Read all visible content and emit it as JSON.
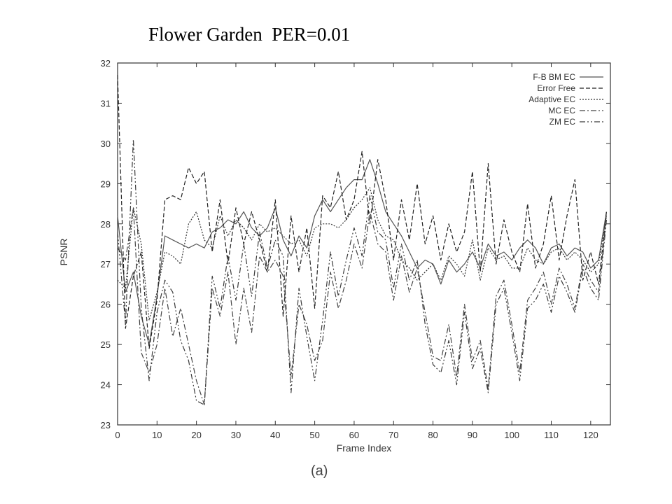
{
  "slide": {
    "title": "Flower Garden  PER=0.01",
    "caption": "(a)"
  },
  "chart_data": {
    "type": "line",
    "xlabel": "Frame Index",
    "ylabel": "PSNR",
    "xlim": [
      0,
      125
    ],
    "ylim": [
      23,
      32
    ],
    "xticks": [
      0,
      10,
      20,
      30,
      40,
      50,
      60,
      70,
      80,
      90,
      100,
      110,
      120
    ],
    "yticks": [
      23,
      24,
      25,
      26,
      27,
      28,
      29,
      30,
      31,
      32
    ],
    "grid": false,
    "legend_position": "top-right",
    "series": [
      {
        "name": "F-B BM EC",
        "dash": "solid",
        "color": "#555555",
        "x": [
          0,
          2,
          4,
          6,
          8,
          10,
          12,
          14,
          16,
          18,
          20,
          22,
          24,
          26,
          28,
          30,
          32,
          34,
          36,
          38,
          40,
          42,
          44,
          46,
          48,
          50,
          52,
          54,
          56,
          58,
          60,
          62,
          64,
          66,
          68,
          70,
          72,
          74,
          76,
          78,
          80,
          82,
          84,
          86,
          88,
          90,
          92,
          94,
          96,
          98,
          100,
          102,
          104,
          106,
          108,
          110,
          112,
          114,
          116,
          118,
          120,
          122,
          124
        ],
        "values": [
          28.2,
          26.3,
          26.8,
          25.7,
          25.0,
          26.2,
          27.7,
          27.6,
          27.5,
          27.4,
          27.5,
          27.4,
          27.8,
          27.9,
          28.1,
          28.0,
          28.3,
          27.9,
          27.7,
          27.9,
          28.4,
          27.6,
          27.2,
          27.7,
          27.4,
          28.2,
          28.6,
          28.3,
          28.6,
          28.9,
          29.1,
          29.1,
          29.6,
          29.0,
          28.3,
          28.0,
          27.7,
          27.3,
          26.9,
          27.1,
          27.0,
          26.5,
          27.1,
          26.8,
          27.0,
          27.3,
          26.9,
          27.5,
          27.2,
          27.3,
          27.1,
          27.4,
          27.6,
          27.4,
          27.0,
          27.4,
          27.5,
          27.2,
          27.4,
          27.3,
          26.9,
          27.1,
          28.3
        ]
      },
      {
        "name": "Error Free",
        "dash": "6,3",
        "color": "#222222",
        "x": [
          0,
          2,
          4,
          6,
          8,
          10,
          12,
          14,
          16,
          18,
          20,
          22,
          24,
          26,
          28,
          30,
          32,
          34,
          36,
          38,
          40,
          42,
          44,
          46,
          48,
          50,
          52,
          54,
          56,
          58,
          60,
          62,
          64,
          66,
          68,
          70,
          72,
          74,
          76,
          78,
          80,
          82,
          84,
          86,
          88,
          90,
          92,
          94,
          96,
          98,
          100,
          102,
          104,
          106,
          108,
          110,
          112,
          114,
          116,
          118,
          120,
          122,
          124
        ],
        "values": [
          31.7,
          25.4,
          26.7,
          27.3,
          24.9,
          26.1,
          28.6,
          28.7,
          28.6,
          29.4,
          29.0,
          29.3,
          27.3,
          28.6,
          27.0,
          28.4,
          27.5,
          28.3,
          27.6,
          26.8,
          28.6,
          25.7,
          28.2,
          26.8,
          27.9,
          25.9,
          28.7,
          28.4,
          29.3,
          28.1,
          28.6,
          29.8,
          28.0,
          29.6,
          28.6,
          27.1,
          28.6,
          27.6,
          29.0,
          27.5,
          28.2,
          27.1,
          28.0,
          27.3,
          27.8,
          29.3,
          26.8,
          29.5,
          27.0,
          28.1,
          27.3,
          26.8,
          28.5,
          26.9,
          27.5,
          28.7,
          27.1,
          28.2,
          29.1,
          26.6,
          27.3,
          26.5,
          28.3
        ]
      },
      {
        "name": "Adaptive EC",
        "dash": "2,2",
        "color": "#333333",
        "x": [
          0,
          2,
          4,
          6,
          8,
          10,
          12,
          14,
          16,
          18,
          20,
          22,
          24,
          26,
          28,
          30,
          32,
          34,
          36,
          38,
          40,
          42,
          44,
          46,
          48,
          50,
          52,
          54,
          56,
          58,
          60,
          62,
          64,
          66,
          68,
          70,
          72,
          74,
          76,
          78,
          80,
          82,
          84,
          86,
          88,
          90,
          92,
          94,
          96,
          98,
          100,
          102,
          104,
          106,
          108,
          110,
          112,
          114,
          116,
          118,
          120,
          122,
          124
        ],
        "values": [
          26.6,
          26.4,
          28.4,
          27.5,
          25.6,
          26.3,
          27.3,
          27.2,
          27.0,
          28.0,
          28.3,
          27.6,
          27.4,
          28.2,
          27.7,
          28.1,
          27.9,
          27.6,
          28.0,
          27.8,
          27.9,
          27.7,
          27.5,
          27.6,
          27.2,
          27.9,
          28.0,
          28.0,
          27.9,
          28.1,
          28.4,
          28.6,
          28.9,
          28.1,
          27.7,
          27.6,
          27.1,
          26.9,
          26.6,
          26.8,
          27.0,
          26.6,
          27.2,
          27.0,
          26.7,
          27.6,
          26.6,
          27.4,
          27.1,
          27.2,
          26.9,
          26.9,
          27.4,
          27.1,
          27.0,
          27.3,
          27.4,
          27.1,
          27.3,
          27.1,
          26.8,
          27.0,
          28.2
        ]
      },
      {
        "name": "MC EC",
        "dash": "8,3,2,3",
        "color": "#444444",
        "x": [
          0,
          2,
          4,
          6,
          8,
          10,
          12,
          14,
          16,
          18,
          20,
          22,
          24,
          26,
          28,
          30,
          32,
          34,
          36,
          38,
          40,
          42,
          44,
          46,
          48,
          50,
          52,
          54,
          56,
          58,
          60,
          62,
          64,
          66,
          68,
          70,
          72,
          74,
          76,
          78,
          80,
          82,
          84,
          86,
          88,
          90,
          92,
          94,
          96,
          98,
          100,
          102,
          104,
          106,
          108,
          110,
          112,
          114,
          116,
          118,
          120,
          122,
          124
        ],
        "values": [
          27.4,
          27.1,
          28.4,
          24.8,
          24.3,
          25.0,
          26.4,
          25.2,
          25.9,
          25.0,
          24.1,
          23.5,
          26.4,
          25.7,
          26.8,
          25.0,
          26.4,
          25.3,
          27.2,
          26.8,
          27.1,
          26.7,
          24.2,
          26.0,
          25.5,
          24.6,
          25.1,
          26.8,
          25.9,
          26.6,
          27.5,
          26.9,
          28.3,
          27.5,
          27.3,
          26.1,
          27.2,
          26.3,
          26.9,
          25.8,
          24.7,
          24.6,
          25.5,
          24.2,
          26.0,
          24.6,
          25.1,
          23.9,
          26.2,
          26.6,
          25.5,
          24.3,
          26.1,
          26.4,
          26.8,
          26.0,
          26.9,
          26.5,
          25.9,
          27.0,
          26.6,
          26.3,
          28.2
        ]
      },
      {
        "name": "ZM EC",
        "dash": "8,3,2,3,2,3",
        "color": "#3a3a3a",
        "x": [
          0,
          2,
          4,
          6,
          8,
          10,
          12,
          14,
          16,
          18,
          20,
          22,
          24,
          26,
          28,
          30,
          32,
          34,
          36,
          38,
          40,
          42,
          44,
          46,
          48,
          50,
          52,
          54,
          56,
          58,
          60,
          62,
          64,
          66,
          68,
          70,
          72,
          74,
          76,
          78,
          80,
          82,
          84,
          86,
          88,
          90,
          92,
          94,
          96,
          98,
          100,
          102,
          104,
          106,
          108,
          110,
          112,
          114,
          116,
          118,
          120,
          122,
          124
        ],
        "values": [
          27.8,
          25.5,
          30.1,
          25.9,
          24.1,
          25.8,
          26.6,
          26.3,
          25.1,
          24.6,
          23.6,
          23.5,
          26.7,
          25.9,
          27.2,
          26.1,
          27.5,
          26.2,
          27.8,
          26.9,
          27.6,
          27.2,
          23.8,
          26.4,
          25.2,
          24.1,
          25.6,
          27.3,
          26.2,
          27.1,
          27.9,
          27.2,
          28.7,
          27.8,
          27.6,
          26.4,
          27.5,
          26.6,
          27.1,
          25.5,
          24.5,
          24.3,
          25.1,
          24.0,
          25.8,
          24.4,
          24.9,
          23.8,
          26.0,
          26.4,
          25.3,
          24.1,
          25.9,
          26.1,
          26.5,
          25.8,
          26.7,
          26.3,
          25.8,
          26.9,
          26.4,
          26.1,
          28.1
        ]
      }
    ]
  }
}
